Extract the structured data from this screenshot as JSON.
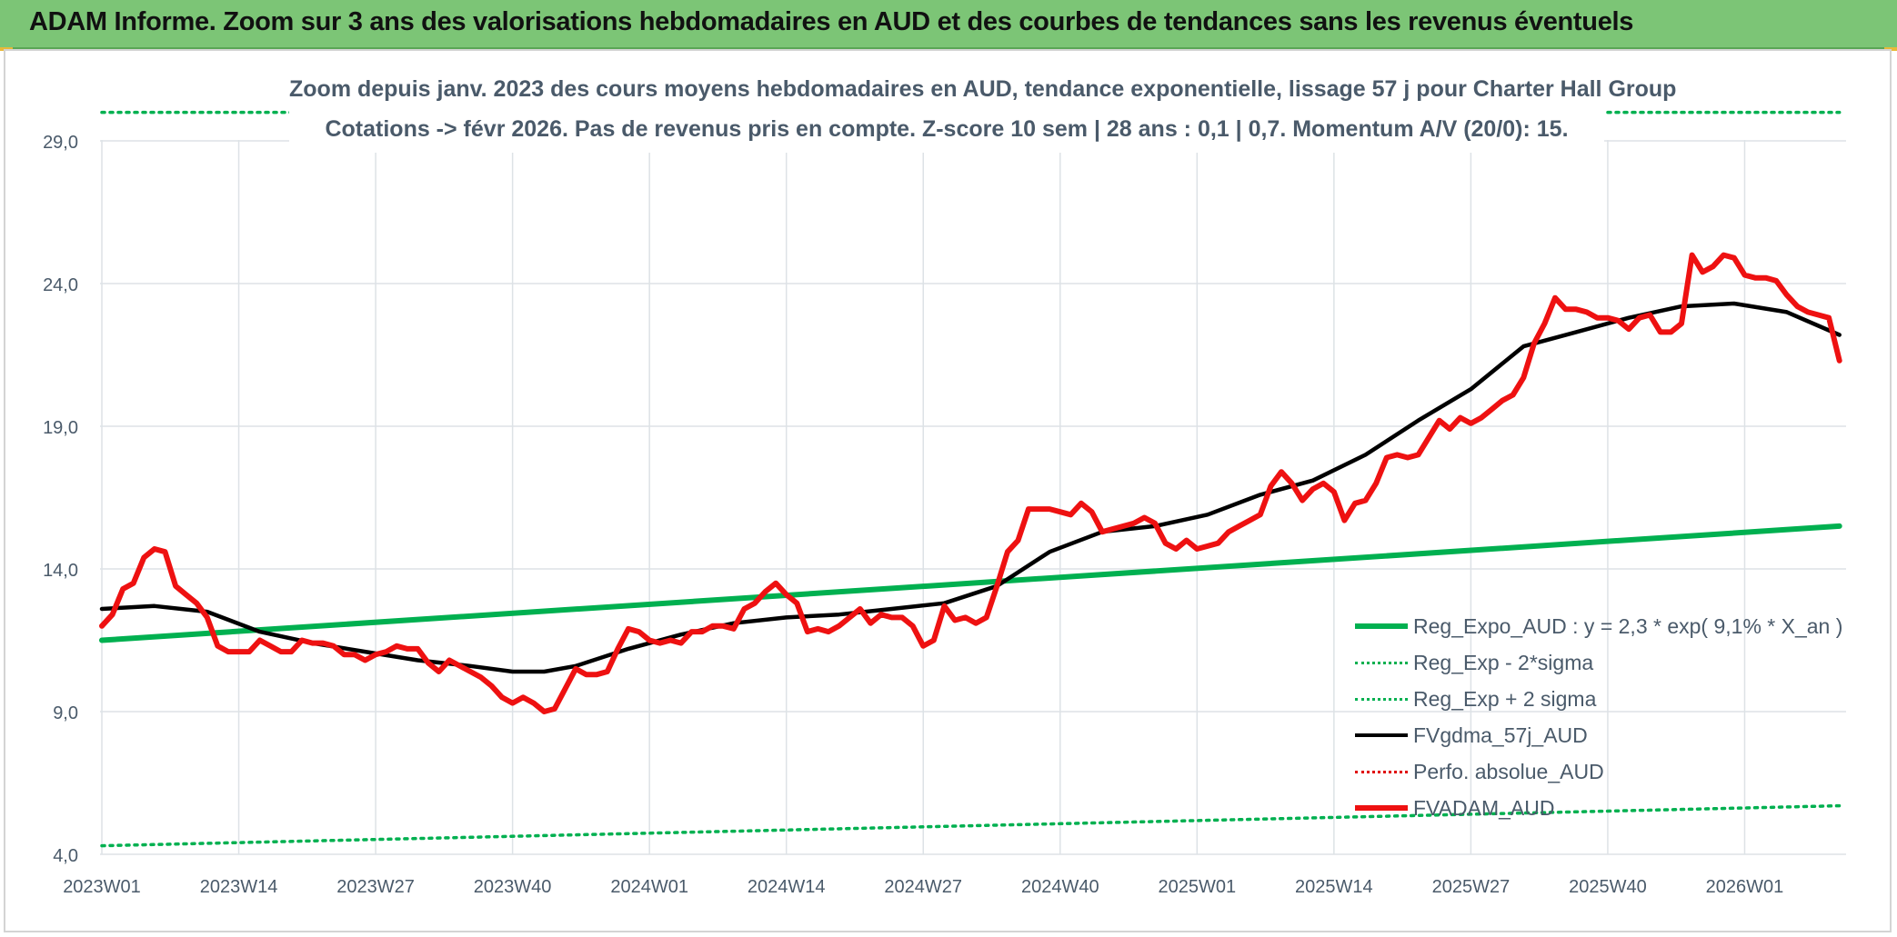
{
  "banner": {
    "title": "ADAM Informe. Zoom sur 3 ans des valorisations hebdomadaires en AUD et des courbes de tendances sans les revenus éventuels"
  },
  "chart_data": {
    "type": "line",
    "title_line1": "Zoom depuis janv. 2023 des cours moyens hebdomadaires en AUD, tendance exponentielle, lissage 57 j pour Charter Hall Group",
    "title_line2": "Cotations -> févr 2026. Pas de revenus pris en compte. Z-score 10 sem | 28 ans : 0,1 | 0,7. Momentum A/V (20/0): 15.",
    "ylim": [
      4,
      30
    ],
    "y_ticks": [
      "4,0",
      "9,0",
      "14,0",
      "19,0",
      "24,0",
      "29,0"
    ],
    "y_tick_values": [
      4,
      9,
      14,
      19,
      24,
      29
    ],
    "x_ticks": [
      "2023W01",
      "2023W14",
      "2023W27",
      "2023W40",
      "2024W01",
      "2024W14",
      "2024W27",
      "2024W40",
      "2025W01",
      "2025W14",
      "2025W27",
      "2025W40",
      "2026W01"
    ],
    "x_tick_index": [
      0,
      13,
      26,
      39,
      52,
      65,
      78,
      91,
      104,
      117,
      130,
      143,
      156
    ],
    "x_count": 166,
    "grid": true,
    "legend_position": "right",
    "series": [
      {
        "name": "Reg_Expo_AUD : y = 2,3 * exp( 9,1% *  X_an )",
        "color": "#00b050",
        "style": "solid-thick",
        "x": [
          0,
          165
        ],
        "values": [
          11.5,
          15.5
        ]
      },
      {
        "name": "Reg_Exp - 2*sigma",
        "color": "#00b050",
        "style": "dotted",
        "x": [
          0,
          165
        ],
        "values": [
          4.3,
          5.7
        ]
      },
      {
        "name": "Reg_Exp + 2 sigma",
        "color": "#00b050",
        "style": "dotted",
        "x": [
          0,
          165
        ],
        "values": [
          30.0,
          30.0
        ]
      },
      {
        "name": "FVgdma_57j_AUD",
        "color": "#000000",
        "style": "solid",
        "x": [
          0,
          5,
          10,
          15,
          20,
          25,
          30,
          35,
          39,
          42,
          45,
          50,
          55,
          60,
          65,
          70,
          75,
          80,
          85,
          90,
          95,
          100,
          105,
          110,
          115,
          120,
          125,
          130,
          135,
          140,
          145,
          150,
          155,
          160,
          165
        ],
        "values": [
          12.6,
          12.7,
          12.5,
          11.8,
          11.4,
          11.1,
          10.8,
          10.6,
          10.4,
          10.4,
          10.6,
          11.2,
          11.7,
          12.1,
          12.3,
          12.4,
          12.6,
          12.8,
          13.4,
          14.6,
          15.3,
          15.5,
          15.9,
          16.6,
          17.1,
          18.0,
          19.2,
          20.3,
          21.8,
          22.3,
          22.8,
          23.2,
          23.3,
          23.0,
          22.2
        ]
      },
      {
        "name": "Perfo. absolue_AUD",
        "color": "#e00000",
        "style": "dotted",
        "x": [],
        "values": []
      },
      {
        "name": "FVADAM_AUD",
        "color": "#ee1111",
        "style": "solid-thick",
        "x": [
          0,
          1,
          2,
          3,
          4,
          5,
          6,
          7,
          8,
          9,
          10,
          11,
          12,
          13,
          14,
          15,
          16,
          17,
          18,
          19,
          20,
          21,
          22,
          23,
          24,
          25,
          26,
          27,
          28,
          29,
          30,
          31,
          32,
          33,
          34,
          35,
          36,
          37,
          38,
          39,
          40,
          41,
          42,
          43,
          44,
          45,
          46,
          47,
          48,
          49,
          50,
          51,
          52,
          53,
          54,
          55,
          56,
          57,
          58,
          59,
          60,
          61,
          62,
          63,
          64,
          65,
          66,
          67,
          68,
          69,
          70,
          71,
          72,
          73,
          74,
          75,
          76,
          77,
          78,
          79,
          80,
          81,
          82,
          83,
          84,
          85,
          86,
          87,
          88,
          89,
          90,
          91,
          92,
          93,
          94,
          95,
          96,
          97,
          98,
          99,
          100,
          101,
          102,
          103,
          104,
          105,
          106,
          107,
          108,
          109,
          110,
          111,
          112,
          113,
          114,
          115,
          116,
          117,
          118,
          119,
          120,
          121,
          122,
          123,
          124,
          125,
          126,
          127,
          128,
          129,
          130,
          131,
          132,
          133,
          134,
          135,
          136,
          137,
          138,
          139,
          140,
          141,
          142,
          143,
          144,
          145,
          146,
          147,
          148,
          149,
          150,
          151,
          152,
          153,
          154,
          155,
          156,
          157,
          158,
          159,
          160,
          161,
          162,
          163,
          164,
          165
        ],
        "values": [
          12.0,
          12.4,
          13.3,
          13.5,
          14.4,
          14.7,
          14.6,
          13.4,
          13.1,
          12.8,
          12.3,
          11.3,
          11.1,
          11.1,
          11.1,
          11.5,
          11.3,
          11.1,
          11.1,
          11.5,
          11.4,
          11.4,
          11.3,
          11.0,
          11.0,
          10.8,
          11.0,
          11.1,
          11.3,
          11.2,
          11.2,
          10.7,
          10.4,
          10.8,
          10.6,
          10.4,
          10.2,
          9.9,
          9.5,
          9.3,
          9.5,
          9.3,
          9.0,
          9.1,
          9.8,
          10.5,
          10.3,
          10.3,
          10.4,
          11.2,
          11.9,
          11.8,
          11.5,
          11.4,
          11.5,
          11.4,
          11.8,
          11.8,
          12.0,
          12.0,
          11.9,
          12.6,
          12.8,
          13.2,
          13.5,
          13.1,
          12.8,
          11.8,
          11.9,
          11.8,
          12.0,
          12.3,
          12.6,
          12.1,
          12.4,
          12.3,
          12.3,
          12.0,
          11.3,
          11.5,
          12.7,
          12.2,
          12.3,
          12.1,
          12.3,
          13.4,
          14.6,
          15.0,
          16.1,
          16.1,
          16.1,
          16.0,
          15.9,
          16.3,
          16.0,
          15.3,
          15.4,
          15.5,
          15.6,
          15.8,
          15.6,
          14.9,
          14.7,
          15.0,
          14.7,
          14.8,
          14.9,
          15.3,
          15.5,
          15.7,
          15.9,
          16.9,
          17.4,
          17.0,
          16.4,
          16.8,
          17.0,
          16.7,
          15.7,
          16.3,
          16.4,
          17.0,
          17.9,
          18.0,
          17.9,
          18.0,
          18.6,
          19.2,
          18.9,
          19.3,
          19.1,
          19.3,
          19.6,
          19.9,
          20.1,
          20.7,
          21.9,
          22.6,
          23.5,
          23.1,
          23.1,
          23.0,
          22.8,
          22.8,
          22.7,
          22.4,
          22.8,
          22.9,
          22.3,
          22.3,
          22.6,
          25.0,
          24.4,
          24.6,
          25.0,
          24.9,
          24.3,
          24.2,
          24.2,
          24.1,
          23.6,
          23.2,
          23.0,
          22.9,
          22.8,
          21.3
        ]
      }
    ]
  }
}
